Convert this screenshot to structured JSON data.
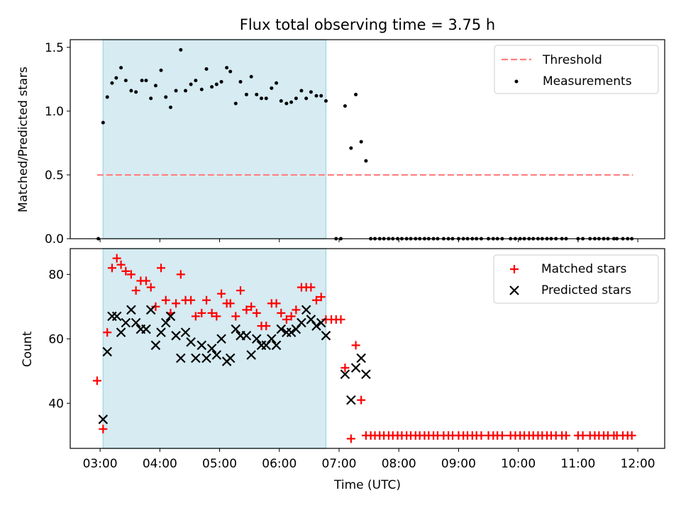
{
  "title": "Flux total observing time = 3.75 h",
  "colors": {
    "span": "#add8e6",
    "threshold": "#ff7f7f",
    "measurement": "#000000",
    "matched": "#ff0000",
    "predicted": "#000000"
  },
  "chart_data": [
    {
      "type": "scatter",
      "ylabel": "Matched/Predicted stars",
      "xlim": [
        2.5,
        12.45
      ],
      "ylim": [
        0,
        1.56
      ],
      "yticks": [
        0.0,
        0.5,
        1.0,
        1.5
      ],
      "ytick_labels": [
        "0.0",
        "0.5",
        "1.0",
        "1.5"
      ],
      "shaded_span": [
        3.05,
        6.78
      ],
      "threshold": {
        "name": "Threshold",
        "y": 0.5,
        "x_range": [
          2.95,
          11.92
        ]
      },
      "legend": {
        "position": "top-right",
        "entries": [
          "Threshold",
          "Measurements"
        ]
      },
      "series": [
        {
          "name": "Measurements",
          "x": [
            2.97,
            3.05,
            3.12,
            3.2,
            3.27,
            3.35,
            3.43,
            3.52,
            3.6,
            3.7,
            3.77,
            3.85,
            3.93,
            4.02,
            4.1,
            4.18,
            4.27,
            4.35,
            4.43,
            4.52,
            4.6,
            4.7,
            4.78,
            4.87,
            4.95,
            5.03,
            5.12,
            5.18,
            5.27,
            5.35,
            5.45,
            5.53,
            5.62,
            5.7,
            5.78,
            5.87,
            5.95,
            6.03,
            6.12,
            6.2,
            6.28,
            6.37,
            6.45,
            6.53,
            6.62,
            6.7,
            6.78,
            6.95,
            7.03,
            7.1,
            7.2,
            7.28,
            7.37,
            7.45,
            7.53,
            7.6,
            7.68,
            7.75,
            7.83,
            7.9,
            7.98,
            8.05,
            8.13,
            8.2,
            8.28,
            8.35,
            8.43,
            8.5,
            8.58,
            8.65,
            8.75,
            8.83,
            8.9,
            9.0,
            9.08,
            9.15,
            9.23,
            9.3,
            9.38,
            9.5,
            9.58,
            9.65,
            9.73,
            9.87,
            9.95,
            10.03,
            10.1,
            10.18,
            10.25,
            10.33,
            10.4,
            10.48,
            10.55,
            10.63,
            10.73,
            10.8,
            11.0,
            11.08,
            11.2,
            11.28,
            11.35,
            11.43,
            11.5,
            11.6,
            11.65,
            11.75,
            11.83,
            11.9
          ],
          "y": [
            0.0,
            0.91,
            1.11,
            1.22,
            1.26,
            1.34,
            1.24,
            1.16,
            1.15,
            1.24,
            1.24,
            1.1,
            1.2,
            1.32,
            1.11,
            1.03,
            1.16,
            1.48,
            1.16,
            1.21,
            1.24,
            1.17,
            1.33,
            1.19,
            1.21,
            1.23,
            1.34,
            1.31,
            1.06,
            1.23,
            1.13,
            1.27,
            1.13,
            1.1,
            1.1,
            1.18,
            1.22,
            1.08,
            1.06,
            1.07,
            1.1,
            1.16,
            1.1,
            1.15,
            1.12,
            1.12,
            1.08,
            0.0,
            0.0,
            1.04,
            0.71,
            1.13,
            0.76,
            0.61,
            0.0,
            0.0,
            0.0,
            0.0,
            0.0,
            0.0,
            0.0,
            0.0,
            0.0,
            0.0,
            0.0,
            0.0,
            0.0,
            0.0,
            0.0,
            0.0,
            0.0,
            0.0,
            0.0,
            0.0,
            0.0,
            0.0,
            0.0,
            0.0,
            0.0,
            0.0,
            0.0,
            0.0,
            0.0,
            0.0,
            0.0,
            0.0,
            0.0,
            0.0,
            0.0,
            0.0,
            0.0,
            0.0,
            0.0,
            0.0,
            0.0,
            0.0,
            0.0,
            0.0,
            0.0,
            0.0,
            0.0,
            0.0,
            0.0,
            0.0,
            0.0,
            0.0,
            0.0,
            0.0
          ]
        }
      ]
    },
    {
      "type": "scatter",
      "xlabel": "Time (UTC)",
      "ylabel": "Count",
      "xlim": [
        2.5,
        12.45
      ],
      "ylim": [
        26,
        88
      ],
      "xticks": [
        3,
        4,
        5,
        6,
        7,
        8,
        9,
        10,
        11,
        12
      ],
      "xtick_labels": [
        "03:00",
        "04:00",
        "05:00",
        "06:00",
        "07:00",
        "08:00",
        "09:00",
        "10:00",
        "11:00",
        "12:00"
      ],
      "yticks": [
        40,
        60,
        80
      ],
      "ytick_labels": [
        "40",
        "60",
        "80"
      ],
      "shaded_span": [
        3.05,
        6.78
      ],
      "legend": {
        "position": "top-right",
        "entries": [
          "Matched stars",
          "Predicted stars"
        ]
      },
      "series": [
        {
          "name": "Matched stars",
          "marker": "+",
          "x": [
            2.95,
            3.05,
            3.12,
            3.2,
            3.28,
            3.35,
            3.43,
            3.52,
            3.6,
            3.68,
            3.77,
            3.85,
            3.93,
            4.02,
            4.1,
            4.18,
            4.27,
            4.35,
            4.43,
            4.52,
            4.6,
            4.7,
            4.78,
            4.87,
            4.95,
            5.03,
            5.12,
            5.18,
            5.27,
            5.35,
            5.45,
            5.53,
            5.62,
            5.7,
            5.78,
            5.87,
            5.95,
            6.03,
            6.12,
            6.2,
            6.28,
            6.37,
            6.45,
            6.53,
            6.62,
            6.7,
            6.78,
            6.87,
            6.95,
            7.03,
            7.1,
            7.2,
            7.28,
            7.37,
            7.45,
            7.53,
            7.6,
            7.68,
            7.75,
            7.83,
            7.9,
            7.98,
            8.05,
            8.13,
            8.2,
            8.28,
            8.35,
            8.43,
            8.5,
            8.58,
            8.65,
            8.75,
            8.83,
            8.9,
            9.0,
            9.08,
            9.15,
            9.23,
            9.3,
            9.38,
            9.5,
            9.58,
            9.65,
            9.73,
            9.87,
            9.95,
            10.03,
            10.1,
            10.18,
            10.25,
            10.33,
            10.4,
            10.48,
            10.55,
            10.63,
            10.73,
            10.8,
            11.0,
            11.08,
            11.2,
            11.28,
            11.35,
            11.43,
            11.5,
            11.6,
            11.65,
            11.75,
            11.83,
            11.9
          ],
          "y": [
            47,
            32,
            62,
            82,
            85,
            83,
            81,
            80,
            75,
            78,
            78,
            76,
            70,
            82,
            72,
            68,
            71,
            80,
            72,
            72,
            67,
            68,
            72,
            68,
            67,
            74,
            71,
            71,
            67,
            75,
            69,
            70,
            68,
            64,
            64,
            71,
            71,
            68,
            66,
            67,
            69,
            76,
            76,
            76,
            72,
            73,
            66,
            66,
            66,
            66,
            51,
            29,
            58,
            41,
            30,
            30,
            30,
            30,
            30,
            30,
            30,
            30,
            30,
            30,
            30,
            30,
            30,
            30,
            30,
            30,
            30,
            30,
            30,
            30,
            30,
            30,
            30,
            30,
            30,
            30,
            30,
            30,
            30,
            30,
            30,
            30,
            30,
            30,
            30,
            30,
            30,
            30,
            30,
            30,
            30,
            30,
            30,
            30,
            30,
            30,
            30,
            30,
            30,
            30,
            30,
            30,
            30,
            30,
            30
          ]
        },
        {
          "name": "Predicted stars",
          "marker": "x",
          "x": [
            3.05,
            3.12,
            3.2,
            3.28,
            3.35,
            3.43,
            3.52,
            3.6,
            3.68,
            3.77,
            3.85,
            3.93,
            4.02,
            4.1,
            4.18,
            4.27,
            4.35,
            4.43,
            4.52,
            4.6,
            4.7,
            4.78,
            4.87,
            4.95,
            5.03,
            5.12,
            5.18,
            5.27,
            5.35,
            5.45,
            5.53,
            5.62,
            5.7,
            5.78,
            5.87,
            5.95,
            6.03,
            6.12,
            6.2,
            6.28,
            6.37,
            6.45,
            6.53,
            6.62,
            6.7,
            6.78,
            7.1,
            7.2,
            7.28,
            7.37,
            7.45
          ],
          "y": [
            35,
            56,
            67,
            67,
            62,
            65,
            69,
            65,
            63,
            63,
            69,
            58,
            62,
            65,
            67,
            61,
            54,
            62,
            59,
            54,
            58,
            54,
            57,
            55,
            60,
            53,
            54,
            63,
            61,
            61,
            55,
            60,
            58,
            58,
            60,
            58,
            63,
            62,
            62,
            63,
            65,
            69,
            66,
            64,
            65,
            61,
            49,
            41,
            51,
            54,
            49
          ]
        }
      ]
    }
  ]
}
